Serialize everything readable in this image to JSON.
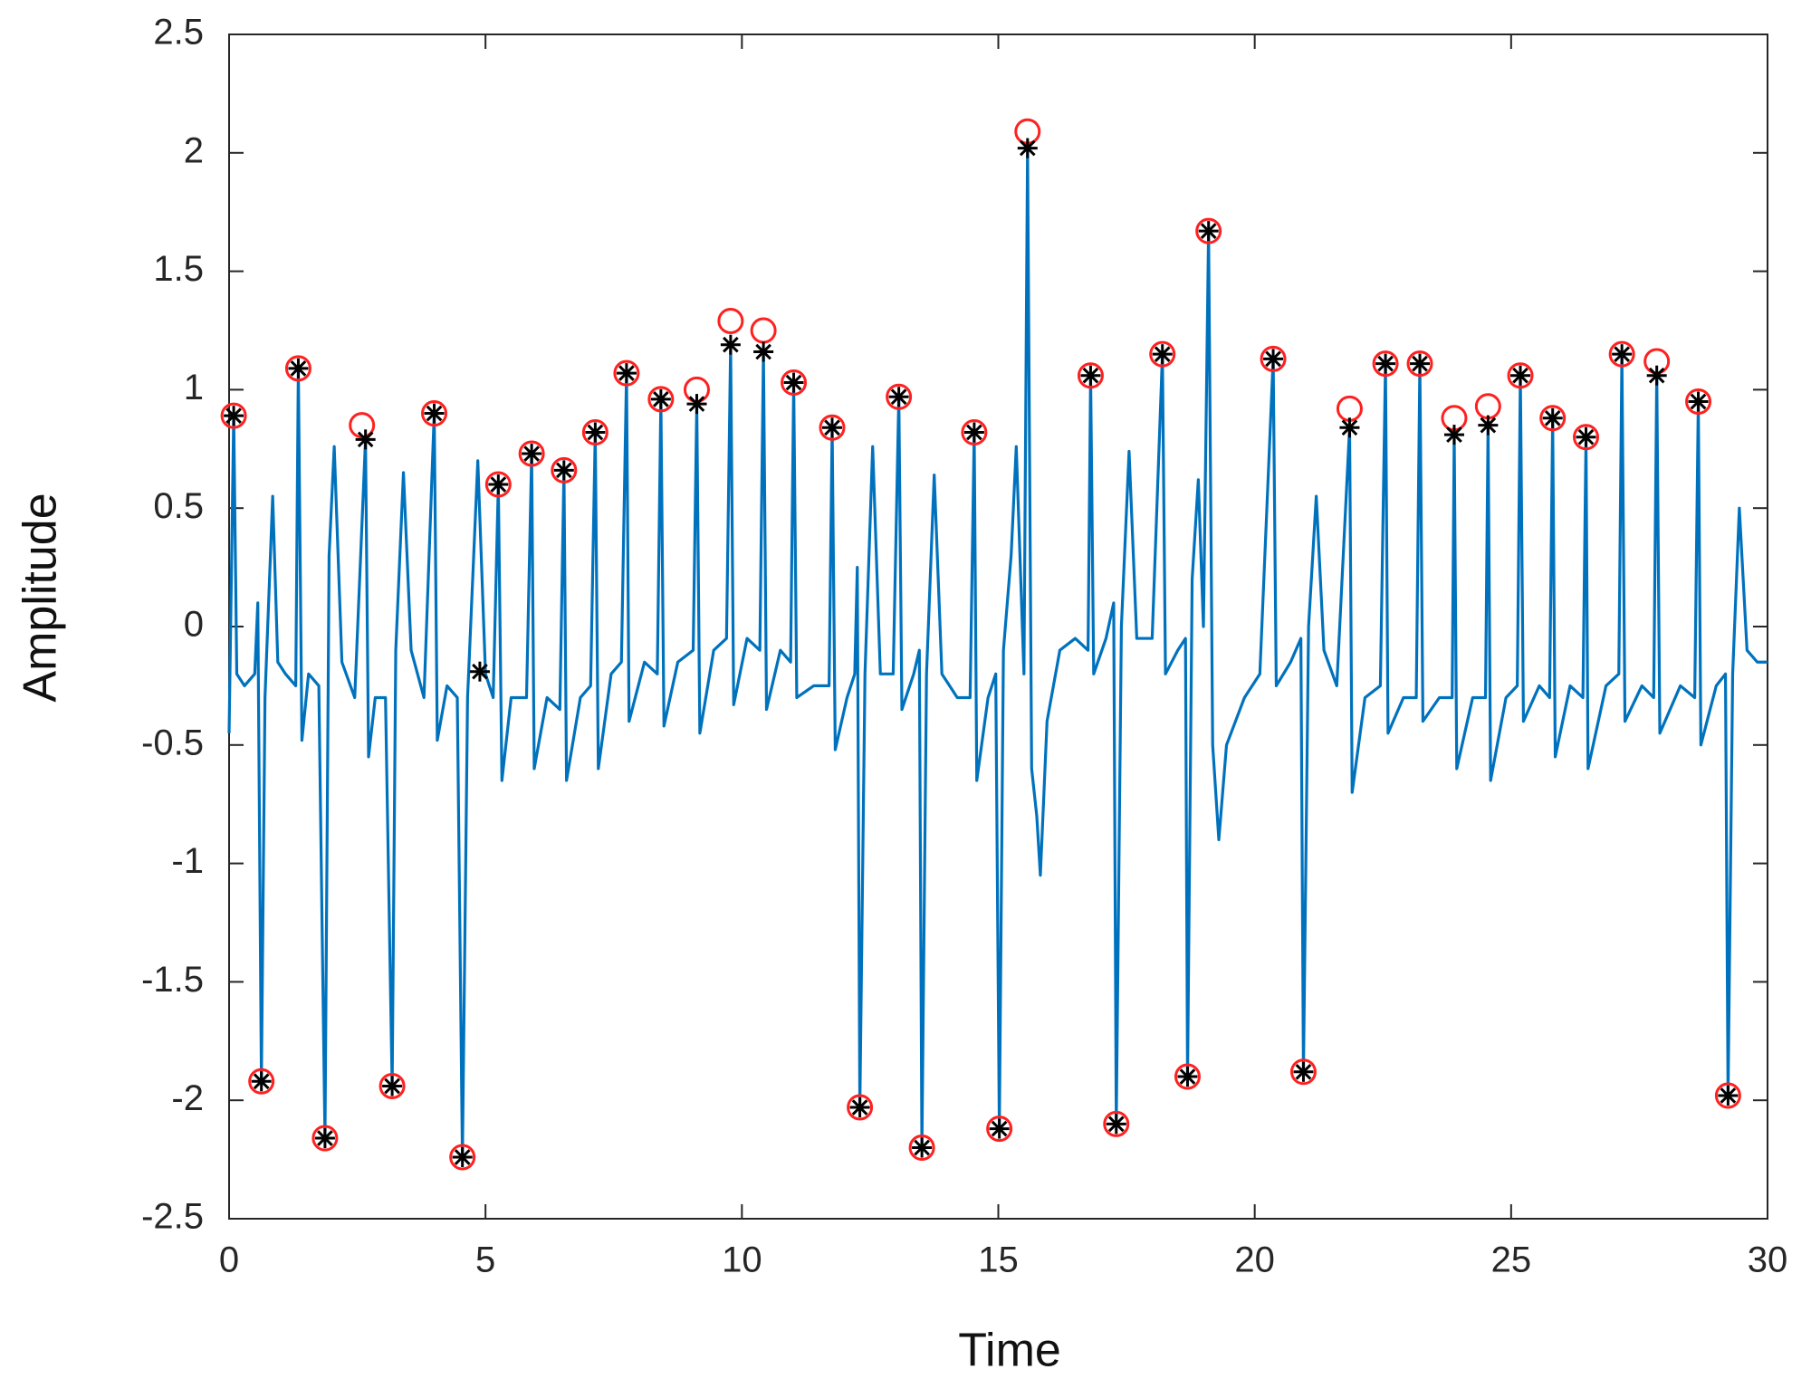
{
  "chart_data": {
    "type": "line",
    "xlabel": "Time",
    "ylabel": "Amplitude",
    "xlim": [
      0,
      30
    ],
    "ylim": [
      -2.5,
      2.5
    ],
    "xticks": [
      0,
      5,
      10,
      15,
      20,
      25,
      30
    ],
    "yticks": [
      2.5,
      2,
      1.5,
      1,
      0.5,
      0,
      -0.5,
      -1,
      -1.5,
      -2,
      -2.5
    ],
    "grid": false,
    "series": [
      {
        "color": "#0072bd",
        "marker": "none",
        "x": [
          0.0,
          0.09,
          0.15,
          0.3,
          0.5,
          0.56,
          0.63,
          0.7,
          0.85,
          0.95,
          1.1,
          1.3,
          1.35,
          1.42,
          1.55,
          1.75,
          1.87,
          1.95,
          2.05,
          2.2,
          2.45,
          2.66,
          2.72,
          2.85,
          3.05,
          3.18,
          3.25,
          3.4,
          3.55,
          3.8,
          4.0,
          4.06,
          4.25,
          4.45,
          4.55,
          4.65,
          4.85,
          5.0,
          5.15,
          5.25,
          5.32,
          5.5,
          5.8,
          5.9,
          5.95,
          6.2,
          6.45,
          6.53,
          6.58,
          6.85,
          7.05,
          7.14,
          7.2,
          7.45,
          7.65,
          7.75,
          7.8,
          8.1,
          8.35,
          8.42,
          8.48,
          8.75,
          9.05,
          9.12,
          9.18,
          9.45,
          9.7,
          9.78,
          9.84,
          10.1,
          10.35,
          10.42,
          10.48,
          10.75,
          10.95,
          11.01,
          11.07,
          11.4,
          11.7,
          11.76,
          11.82,
          12.05,
          12.2,
          12.25,
          12.3,
          12.4,
          12.55,
          12.7,
          12.95,
          13.06,
          13.12,
          13.35,
          13.46,
          13.51,
          13.6,
          13.75,
          13.9,
          14.2,
          14.45,
          14.53,
          14.58,
          14.8,
          14.95,
          15.02,
          15.1,
          15.25,
          15.35,
          15.5,
          15.57,
          15.65,
          15.75,
          15.82,
          15.95,
          16.2,
          16.5,
          16.75,
          16.8,
          16.86,
          17.1,
          17.25,
          17.3,
          17.4,
          17.55,
          17.7,
          18.0,
          18.2,
          18.26,
          18.5,
          18.65,
          18.69,
          18.78,
          18.9,
          19.0,
          19.1,
          19.18,
          19.3,
          19.45,
          19.8,
          20.1,
          20.36,
          20.42,
          20.7,
          20.9,
          20.95,
          21.05,
          21.2,
          21.35,
          21.6,
          21.85,
          21.9,
          22.15,
          22.45,
          22.55,
          22.6,
          22.9,
          23.15,
          23.22,
          23.28,
          23.6,
          23.85,
          23.89,
          23.94,
          24.25,
          24.5,
          24.55,
          24.6,
          24.9,
          25.12,
          25.18,
          25.24,
          25.55,
          25.75,
          25.81,
          25.86,
          26.15,
          26.4,
          26.46,
          26.5,
          26.85,
          27.1,
          27.16,
          27.22,
          27.55,
          27.78,
          27.84,
          27.9,
          28.3,
          28.58,
          28.65,
          28.7,
          29.0,
          29.18,
          29.23,
          29.32,
          29.45,
          29.6,
          29.8,
          30.0
        ],
        "values": [
          -0.45,
          0.89,
          -0.2,
          -0.25,
          -0.2,
          0.1,
          -1.92,
          -0.3,
          0.55,
          -0.15,
          -0.2,
          -0.25,
          1.09,
          -0.48,
          -0.2,
          -0.25,
          -2.16,
          0.3,
          0.76,
          -0.15,
          -0.3,
          0.79,
          -0.55,
          -0.3,
          -0.3,
          -1.94,
          -0.1,
          0.65,
          -0.1,
          -0.3,
          0.9,
          -0.48,
          -0.25,
          -0.3,
          -2.24,
          -0.3,
          0.7,
          -0.2,
          -0.3,
          0.6,
          -0.65,
          -0.3,
          -0.3,
          0.73,
          -0.6,
          -0.3,
          -0.35,
          0.66,
          -0.65,
          -0.3,
          -0.25,
          0.82,
          -0.6,
          -0.2,
          -0.15,
          1.07,
          -0.4,
          -0.15,
          -0.2,
          0.96,
          -0.42,
          -0.15,
          -0.1,
          0.94,
          -0.45,
          -0.1,
          -0.05,
          1.19,
          -0.33,
          -0.05,
          -0.1,
          1.16,
          -0.35,
          -0.1,
          -0.15,
          1.03,
          -0.3,
          -0.25,
          -0.25,
          0.84,
          -0.52,
          -0.3,
          -0.2,
          0.25,
          -2.03,
          -0.2,
          0.76,
          -0.2,
          -0.2,
          0.97,
          -0.35,
          -0.2,
          -0.1,
          -2.2,
          -0.2,
          0.64,
          -0.2,
          -0.3,
          -0.3,
          0.82,
          -0.65,
          -0.3,
          -0.2,
          -2.12,
          -0.1,
          0.3,
          0.76,
          -0.2,
          2.02,
          -0.6,
          -0.8,
          -1.05,
          -0.4,
          -0.1,
          -0.05,
          -0.1,
          1.06,
          -0.2,
          -0.05,
          0.1,
          -2.1,
          0.0,
          0.74,
          -0.05,
          -0.05,
          1.15,
          -0.2,
          -0.1,
          -0.05,
          -1.9,
          0.2,
          0.62,
          0.0,
          1.67,
          -0.5,
          -0.9,
          -0.5,
          -0.3,
          -0.2,
          1.13,
          -0.25,
          -0.15,
          -0.05,
          -1.88,
          0.0,
          0.55,
          -0.1,
          -0.25,
          0.84,
          -0.7,
          -0.3,
          -0.25,
          1.11,
          -0.45,
          -0.3,
          -0.3,
          1.11,
          -0.4,
          -0.3,
          -0.3,
          0.81,
          -0.6,
          -0.3,
          -0.3,
          0.85,
          -0.65,
          -0.3,
          -0.25,
          1.06,
          -0.4,
          -0.25,
          -0.3,
          0.88,
          -0.55,
          -0.25,
          -0.3,
          0.8,
          -0.6,
          -0.25,
          -0.2,
          1.15,
          -0.4,
          -0.25,
          -0.3,
          1.06,
          -0.45,
          -0.25,
          -0.3,
          0.95,
          -0.5,
          -0.25,
          -0.2,
          -1.98,
          -0.2,
          0.5,
          -0.1,
          -0.15,
          -0.15
        ]
      },
      {
        "color": "#ff2020",
        "marker": "circle",
        "x": [
          0.09,
          1.35,
          2.59,
          4.0,
          5.25,
          5.9,
          6.53,
          7.14,
          7.75,
          8.42,
          9.12,
          9.78,
          10.42,
          11.01,
          11.76,
          13.06,
          14.53,
          15.57,
          16.8,
          18.2,
          19.1,
          20.36,
          21.85,
          22.55,
          23.22,
          23.89,
          24.55,
          25.18,
          25.81,
          26.46,
          27.16,
          27.84,
          28.65,
          0.63,
          1.87,
          3.18,
          4.55,
          12.3,
          13.51,
          15.02,
          17.3,
          18.69,
          20.95,
          29.23
        ],
        "values": [
          0.89,
          1.09,
          0.85,
          0.9,
          0.6,
          0.73,
          0.66,
          0.82,
          1.07,
          0.96,
          1.0,
          1.29,
          1.25,
          1.03,
          0.84,
          0.97,
          0.82,
          2.09,
          1.06,
          1.15,
          1.67,
          1.13,
          0.92,
          1.11,
          1.11,
          0.88,
          0.93,
          1.06,
          0.88,
          0.8,
          1.15,
          1.12,
          0.95,
          -1.92,
          -2.16,
          -1.94,
          -2.24,
          -2.03,
          -2.2,
          -2.12,
          -2.1,
          -1.9,
          -1.88,
          -1.98
        ]
      },
      {
        "color": "#000000",
        "marker": "asterisk",
        "x": [
          0.09,
          1.35,
          2.66,
          4.0,
          4.89,
          5.25,
          5.9,
          6.53,
          7.14,
          7.75,
          8.42,
          9.12,
          9.78,
          10.42,
          11.01,
          11.76,
          13.06,
          14.53,
          15.57,
          16.8,
          18.2,
          19.1,
          20.36,
          21.85,
          22.55,
          23.22,
          23.89,
          24.55,
          25.18,
          25.81,
          26.46,
          27.16,
          27.84,
          28.65,
          0.63,
          1.87,
          3.18,
          4.55,
          12.3,
          13.51,
          15.02,
          17.3,
          18.69,
          20.95,
          29.23
        ],
        "values": [
          0.89,
          1.09,
          0.79,
          0.9,
          -0.19,
          0.6,
          0.73,
          0.66,
          0.82,
          1.07,
          0.96,
          0.94,
          1.19,
          1.16,
          1.03,
          0.84,
          0.97,
          0.82,
          2.02,
          1.06,
          1.15,
          1.67,
          1.13,
          0.84,
          1.11,
          1.11,
          0.81,
          0.85,
          1.06,
          0.88,
          0.8,
          1.15,
          1.06,
          0.95,
          -1.92,
          -2.16,
          -1.94,
          -2.24,
          -2.03,
          -2.2,
          -2.12,
          -2.1,
          -1.9,
          -1.88,
          -1.98
        ]
      }
    ]
  }
}
